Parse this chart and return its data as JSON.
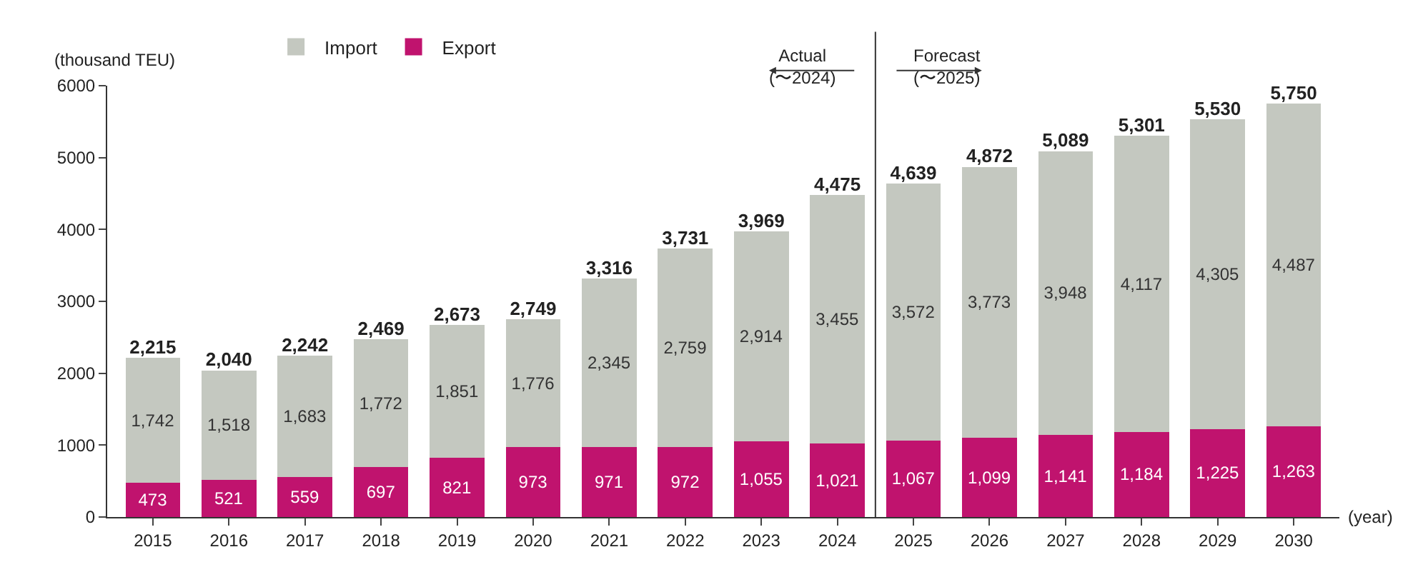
{
  "chart_data": {
    "type": "bar",
    "stacked": true,
    "ylabel": "(thousand TEU)",
    "xlabel": "(year)",
    "x": [
      2015,
      2016,
      2017,
      2018,
      2019,
      2020,
      2021,
      2022,
      2023,
      2024,
      2025,
      2026,
      2027,
      2028,
      2029,
      2030
    ],
    "xlim": [
      2014.4,
      2030.6
    ],
    "xticks": [
      2015,
      2016,
      2017,
      2018,
      2019,
      2020,
      2021,
      2022,
      2023,
      2024,
      2025,
      2026,
      2027,
      2028,
      2029,
      2030
    ],
    "ylim": [
      0,
      6000
    ],
    "yticks": [
      0,
      1000,
      2000,
      3000,
      4000,
      5000,
      6000
    ],
    "series": [
      {
        "name": "Export",
        "color": "#c0136e",
        "values": [
          473,
          521,
          559,
          697,
          821,
          973,
          971,
          972,
          1055,
          1021,
          1067,
          1099,
          1141,
          1184,
          1225,
          1263
        ],
        "value_labels": [
          "473",
          "521",
          "559",
          "697",
          "821",
          "973",
          "971",
          "972",
          "1,055",
          "1,021",
          "1,067",
          "1,099",
          "1,141",
          "1,184",
          "1,225",
          "1,263"
        ]
      },
      {
        "name": "Import",
        "color": "#c4c8c0",
        "values": [
          1742,
          1518,
          1683,
          1772,
          1851,
          1776,
          2345,
          2759,
          2914,
          3455,
          3572,
          3773,
          3948,
          4117,
          4305,
          4487
        ],
        "value_labels": [
          "1,742",
          "1,518",
          "1,683",
          "1,772",
          "1,851",
          "1,776",
          "2,345",
          "2,759",
          "2,914",
          "3,455",
          "3,572",
          "3,773",
          "3,948",
          "4,117",
          "4,305",
          "4,487"
        ]
      }
    ],
    "totals": [
      "2,215",
      "2,040",
      "2,242",
      "2,469",
      "2,673",
      "2,749",
      "3,316",
      "3,731",
      "3,969",
      "4,475",
      "4,639",
      "4,872",
      "5,089",
      "5,301",
      "5,530",
      "5,750"
    ],
    "ref_lines": [
      {
        "axis": "x",
        "value": 2024.5,
        "color": "#333333"
      }
    ],
    "annotations": [
      "Actual\n(〜2024)",
      "Forecast\n(〜2025)"
    ],
    "legend": "top"
  }
}
